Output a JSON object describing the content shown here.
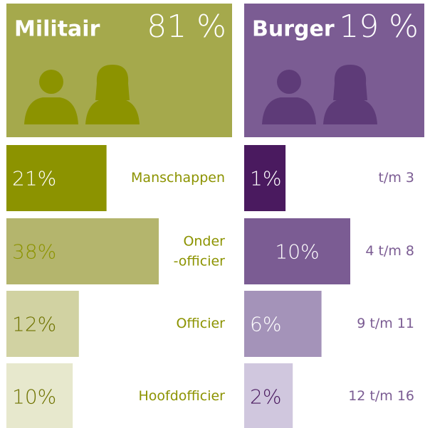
{
  "chart_data": [
    {
      "type": "bar",
      "title": "Militair",
      "total": 81,
      "total_label": "81 %",
      "color": "#a5a94c",
      "label_color": "#8c9300",
      "categories": [
        "Manschappen",
        "Onder\n-officier",
        "Officier",
        "Hoofdofficier"
      ],
      "values": [
        21,
        38,
        12,
        10
      ],
      "value_labels": [
        "21%",
        "38%",
        "12%",
        "10%"
      ],
      "bar_colors": [
        "#8c9300",
        "#b4b56d",
        "#d1d2a2",
        "#e7e8cd"
      ]
    },
    {
      "type": "bar",
      "title": "Burger",
      "total": 19,
      "total_label": "19 %",
      "color": "#7b5c93",
      "label_color": "#7b5c93",
      "categories": [
        "t/m 3",
        "4 t/m 8",
        "9 t/m 11",
        "12 t/m 16"
      ],
      "values": [
        1,
        10,
        6,
        2
      ],
      "value_labels": [
        "1%",
        "10%",
        "6%",
        "2%"
      ],
      "bar_colors": [
        "#4a1a5f",
        "#7b5c93",
        "#a493b9",
        "#d0c7de"
      ]
    }
  ]
}
